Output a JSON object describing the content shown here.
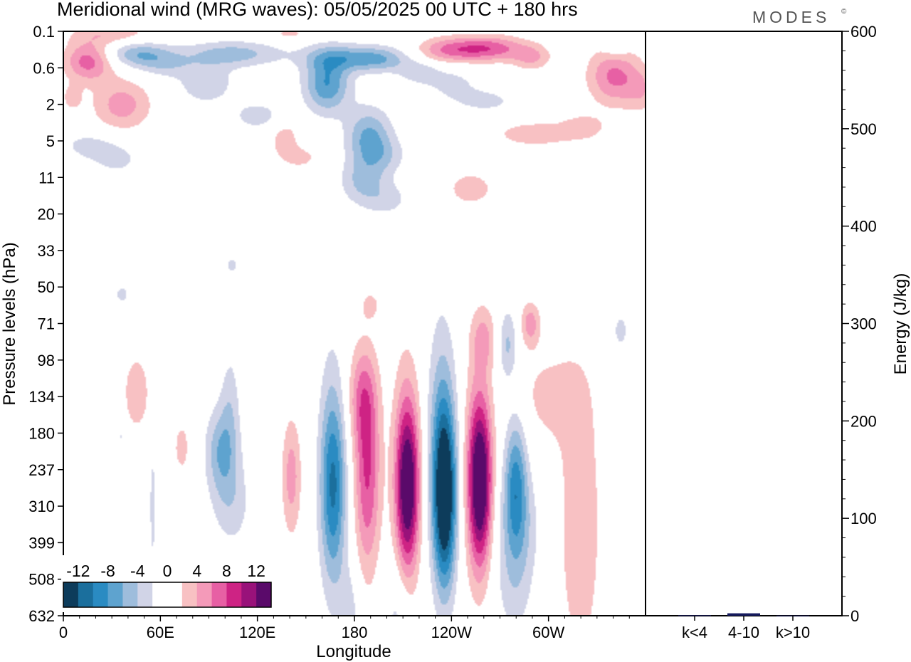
{
  "title": "Meridional wind (MRG waves):  05/05/2025  00 UTC  + 180 hrs",
  "brand": "MODES",
  "brand_mark": "©",
  "chart_data": [
    {
      "type": "heatmap",
      "title": "Meridional wind (MRG waves):  05/05/2025  00 UTC  + 180 hrs",
      "xlabel": "Longitude",
      "ylabel": "Pressure levels (hPa)",
      "x_ticks": [
        {
          "lon": 0,
          "label": "0"
        },
        {
          "lon": 60,
          "label": "60E"
        },
        {
          "lon": 120,
          "label": "120E"
        },
        {
          "lon": 180,
          "label": "180"
        },
        {
          "lon": 240,
          "label": "120W"
        },
        {
          "lon": 300,
          "label": "60W"
        }
      ],
      "xlim": [
        0,
        360
      ],
      "y_levels": [
        "0.1",
        "0.6",
        "2",
        "5",
        "11",
        "20",
        "33",
        "50",
        "71",
        "98",
        "134",
        "180",
        "237",
        "310",
        "399",
        "508",
        "632"
      ],
      "colorbar": {
        "tick_labels": [
          "-12",
          "-8",
          "-4",
          "0",
          "4",
          "8",
          "12"
        ],
        "colors": [
          "#0d3c5b",
          "#1b6f9d",
          "#2a8bc2",
          "#5ea3cf",
          "#9ebddc",
          "#d1d4e7",
          "#ffffff",
          "#ffffff",
          "#f8c1c3",
          "#f49ab9",
          "#e760a4",
          "#ce2384",
          "#99127a",
          "#5a0a6a"
        ],
        "cut_values": [
          -14,
          -12,
          -10,
          -8,
          -6,
          -4,
          -2,
          0,
          2,
          4,
          6,
          8,
          10,
          12,
          14
        ]
      },
      "features": [
        {
          "lon": 15,
          "level": 0.8,
          "w_deg": 15,
          "h_lev": 0.55,
          "value": 7
        },
        {
          "lon": 36,
          "level": 2.0,
          "w_deg": 18,
          "h_lev": 0.7,
          "value": 5
        },
        {
          "lon": 15,
          "level": 3.1,
          "w_deg": 18,
          "h_lev": 0.4,
          "value": -2.5
        },
        {
          "lon": 33,
          "level": 3.5,
          "w_deg": 18,
          "h_lev": 0.5,
          "value": -2.4
        },
        {
          "lon": 46,
          "level": 0.6,
          "w_deg": 20,
          "h_lev": 0.35,
          "value": -5.5
        },
        {
          "lon": 62,
          "level": 0.9,
          "w_deg": 18,
          "h_lev": 0.35,
          "value": -3
        },
        {
          "lon": 105,
          "level": 0.6,
          "w_deg": 30,
          "h_lev": 0.35,
          "value": -5
        },
        {
          "lon": 88,
          "level": 1.4,
          "w_deg": 18,
          "h_lev": 0.6,
          "value": -3.5
        },
        {
          "lon": 30,
          "level": 0.05,
          "w_deg": 25,
          "h_lev": 0.3,
          "value": 3.5
        },
        {
          "lon": 140,
          "level": 0.05,
          "w_deg": 15,
          "h_lev": 0.2,
          "value": 2.5
        },
        {
          "lon": 163,
          "level": 1.4,
          "w_deg": 14,
          "h_lev": 0.8,
          "value": -8
        },
        {
          "lon": 120,
          "level": 2.3,
          "w_deg": 16,
          "h_lev": 0.4,
          "value": -3
        },
        {
          "lon": 148,
          "level": 3.0,
          "w_deg": 10,
          "h_lev": 0.35,
          "value": -2.5
        },
        {
          "lon": 147,
          "level": 3.3,
          "w_deg": 14,
          "h_lev": 0.5,
          "value": 3
        },
        {
          "lon": 173,
          "level": 0.7,
          "w_deg": 24,
          "h_lev": 0.35,
          "value": -4.5
        },
        {
          "lon": 196,
          "level": 0.75,
          "w_deg": 20,
          "h_lev": 0.35,
          "value": -5
        },
        {
          "lon": 220,
          "level": 1.1,
          "w_deg": 12,
          "h_lev": 0.3,
          "value": -3
        },
        {
          "lon": 189,
          "level": 2.9,
          "w_deg": 14,
          "h_lev": 0.8,
          "value": -6.5
        },
        {
          "lon": 199,
          "level": 3.4,
          "w_deg": 14,
          "h_lev": 0.5,
          "value": -2.5
        },
        {
          "lon": 185,
          "level": 4.1,
          "w_deg": 14,
          "h_lev": 0.6,
          "value": -4
        },
        {
          "lon": 200,
          "level": 4.6,
          "w_deg": 16,
          "h_lev": 0.5,
          "value": -2.6
        },
        {
          "lon": 240,
          "level": 1.4,
          "w_deg": 18,
          "h_lev": 0.5,
          "value": -2.5
        },
        {
          "lon": 262,
          "level": 1.9,
          "w_deg": 20,
          "h_lev": 0.35,
          "value": -2.5
        },
        {
          "lon": 238,
          "level": 0.5,
          "w_deg": 20,
          "h_lev": 0.35,
          "value": 5.5
        },
        {
          "lon": 264,
          "level": 0.45,
          "w_deg": 22,
          "h_lev": 0.35,
          "value": 7
        },
        {
          "lon": 290,
          "level": 0.7,
          "w_deg": 12,
          "h_lev": 0.35,
          "value": 4
        },
        {
          "lon": 341,
          "level": 1.2,
          "w_deg": 16,
          "h_lev": 0.8,
          "value": 6.5
        },
        {
          "lon": 358,
          "level": 1.6,
          "w_deg": 10,
          "h_lev": 0.6,
          "value": 3
        },
        {
          "lon": 5,
          "level": 1.8,
          "w_deg": 6,
          "h_lev": 0.35,
          "value": 3
        },
        {
          "lon": 292,
          "level": 2.8,
          "w_deg": 25,
          "h_lev": 0.35,
          "value": 3.5
        },
        {
          "lon": 322,
          "level": 2.6,
          "w_deg": 14,
          "h_lev": 0.35,
          "value": 3
        },
        {
          "lon": 138,
          "level": 2.9,
          "w_deg": 10,
          "h_lev": 0.5,
          "value": 3
        },
        {
          "lon": 252,
          "level": 4.3,
          "w_deg": 14,
          "h_lev": 0.45,
          "value": 3.5
        },
        {
          "lon": 342,
          "level": 0.4,
          "w_deg": 8,
          "h_lev": 0.35,
          "value": -2.5
        },
        {
          "lon": 104,
          "level": 6.4,
          "w_deg": 5,
          "h_lev": 0.3,
          "value": -2.5
        },
        {
          "lon": 45,
          "level": 9.9,
          "w_deg": 10,
          "h_lev": 1.3,
          "value": 3
        },
        {
          "lon": 36,
          "level": 7.2,
          "w_deg": 6,
          "h_lev": 0.35,
          "value": -2.5
        },
        {
          "lon": 73,
          "level": 11.4,
          "w_deg": 7,
          "h_lev": 1.0,
          "value": 2.5
        },
        {
          "lon": 98,
          "level": 11.5,
          "w_deg": 10,
          "h_lev": 1.2,
          "value": -6
        },
        {
          "lon": 103,
          "level": 10.0,
          "w_deg": 6,
          "h_lev": 1.4,
          "value": -2.6
        },
        {
          "lon": 104,
          "level": 13.0,
          "w_deg": 12,
          "h_lev": 1.2,
          "value": -3
        },
        {
          "lon": 141,
          "level": 12.2,
          "w_deg": 6,
          "h_lev": 1.6,
          "value": 5
        },
        {
          "lon": 167,
          "level": 12.5,
          "w_deg": 8,
          "h_lev": 2.4,
          "value": -7.5
        },
        {
          "lon": 166,
          "level": 12.0,
          "w_deg": 8,
          "h_lev": 3.6,
          "value": -3.2
        },
        {
          "lon": 188,
          "level": 12.2,
          "w_deg": 8,
          "h_lev": 2.6,
          "value": 8
        },
        {
          "lon": 185,
          "level": 10.0,
          "w_deg": 9,
          "h_lev": 1.4,
          "value": 5
        },
        {
          "lon": 213,
          "level": 12.5,
          "w_deg": 7,
          "h_lev": 2.2,
          "value": 12
        },
        {
          "lon": 212,
          "level": 12.0,
          "w_deg": 9,
          "h_lev": 3.2,
          "value": 4
        },
        {
          "lon": 236,
          "level": 12.8,
          "w_deg": 7,
          "h_lev": 2.4,
          "value": -14
        },
        {
          "lon": 234,
          "level": 11.2,
          "w_deg": 9,
          "h_lev": 3.4,
          "value": -5
        },
        {
          "lon": 258,
          "level": 12.4,
          "w_deg": 7,
          "h_lev": 2.2,
          "value": 13
        },
        {
          "lon": 256,
          "level": 12.0,
          "w_deg": 9,
          "h_lev": 3.0,
          "value": 4
        },
        {
          "lon": 280,
          "level": 12.3,
          "w_deg": 7,
          "h_lev": 1.8,
          "value": -8
        },
        {
          "lon": 282,
          "level": 13.5,
          "w_deg": 14,
          "h_lev": 1.5,
          "value": -3
        },
        {
          "lon": 320,
          "level": 13.5,
          "w_deg": 14,
          "h_lev": 4.2,
          "value": 3.5
        },
        {
          "lon": 300,
          "level": 10.0,
          "w_deg": 22,
          "h_lev": 1.4,
          "value": 2.5
        },
        {
          "lon": 260,
          "level": 8.4,
          "w_deg": 8,
          "h_lev": 0.9,
          "value": 4
        },
        {
          "lon": 275,
          "level": 8.6,
          "w_deg": 6,
          "h_lev": 1.0,
          "value": -4.5
        },
        {
          "lon": 289,
          "level": 8.0,
          "w_deg": 6,
          "h_lev": 0.6,
          "value": 5
        },
        {
          "lon": 345,
          "level": 8.2,
          "w_deg": 6,
          "h_lev": 0.6,
          "value": -2.6
        },
        {
          "lon": 190,
          "level": 7.5,
          "w_deg": 6,
          "h_lev": 0.4,
          "value": 2.6
        },
        {
          "lon": 177,
          "level": 16.0,
          "w_deg": 7,
          "h_lev": 1.4,
          "value": -3
        },
        {
          "lon": 207,
          "level": 16.0,
          "w_deg": 8,
          "h_lev": 1.5,
          "value": -3
        },
        {
          "lon": 279,
          "level": 15.2,
          "w_deg": 12,
          "h_lev": 1.6,
          "value": -2.7
        },
        {
          "lon": 55,
          "level": 13.0,
          "w_deg": 2.5,
          "h_lev": 2.2,
          "value": -2.6
        },
        {
          "lon": 35,
          "level": 11.0,
          "w_deg": 2,
          "h_lev": 0.8,
          "value": -2.6
        }
      ],
      "energy_axis": {
        "label": "Energy (J/kg)",
        "range": [
          0,
          600
        ],
        "ticks": [
          "0",
          "100",
          "200",
          "300",
          "400",
          "500",
          "600"
        ]
      },
      "energy_bars": [
        {
          "category": "k<4",
          "value": 0.5
        },
        {
          "category": "4-10",
          "value": 2.5
        },
        {
          "category": "k>10",
          "value": 0.2
        }
      ],
      "energy_bar_color": "#161b5e"
    }
  ]
}
